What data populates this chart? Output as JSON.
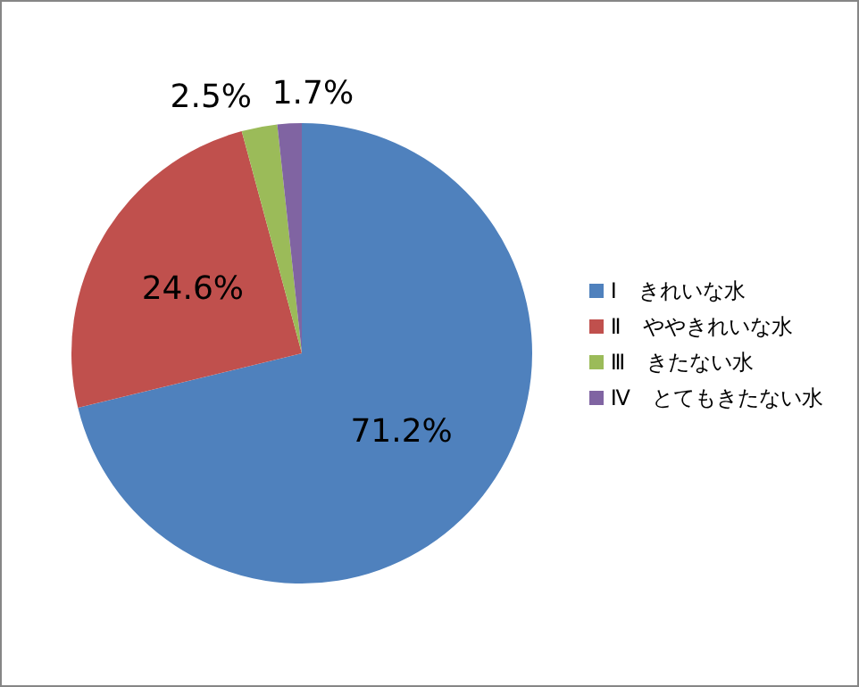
{
  "chart_data": {
    "type": "pie",
    "categories": [
      "Ⅰ　きれいな水",
      "Ⅱ　ややきれいな水",
      "Ⅲ　きたない水",
      "Ⅳ　とてもきたない水"
    ],
    "values": [
      71.2,
      24.6,
      2.5,
      1.7
    ],
    "colors": [
      "#4f81bd",
      "#c0504d",
      "#9bbb59",
      "#8064a2"
    ],
    "value_labels": [
      "71.2%",
      "24.6%",
      "2.5%",
      "1.7%"
    ],
    "legend": "right"
  }
}
